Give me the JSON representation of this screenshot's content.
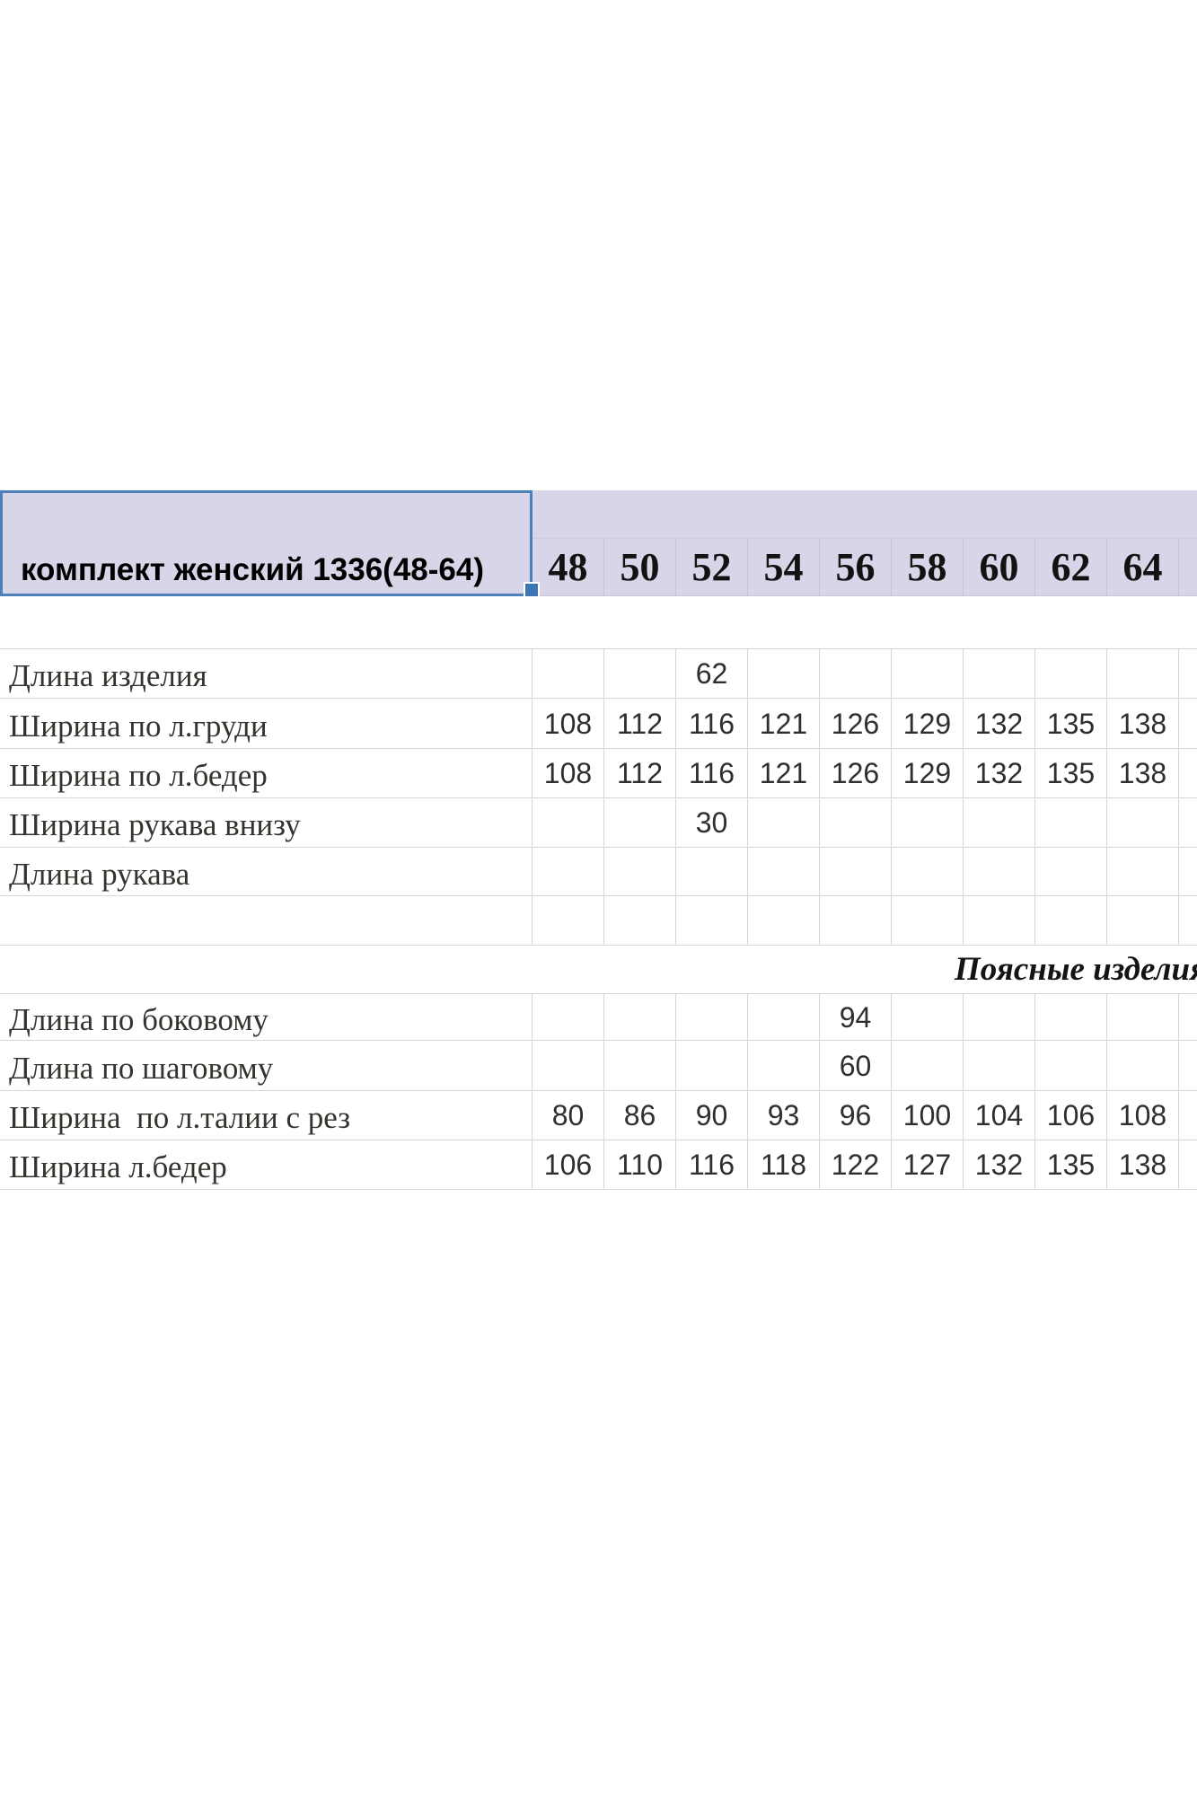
{
  "selected_cell": {
    "text": "комплект женский 1336(48-64)"
  },
  "size_header": {
    "sizes": [
      "48",
      "50",
      "52",
      "54",
      "56",
      "58",
      "60",
      "62",
      "64"
    ]
  },
  "section2_heading": "Поясные изделия",
  "rows_top": [
    {
      "label": "Длина изделия",
      "values": [
        "",
        "",
        "62",
        "",
        "",
        "",
        "",
        "",
        ""
      ]
    },
    {
      "label": "Ширина по л.груди",
      "values": [
        "108",
        "112",
        "116",
        "121",
        "126",
        "129",
        "132",
        "135",
        "138"
      ]
    },
    {
      "label": "Ширина по л.бедер",
      "values": [
        "108",
        "112",
        "116",
        "121",
        "126",
        "129",
        "132",
        "135",
        "138"
      ]
    },
    {
      "label": "Ширина рукава внизу",
      "values": [
        "",
        "",
        "30",
        "",
        "",
        "",
        "",
        "",
        ""
      ]
    },
    {
      "label": "Длина рукава",
      "values": [
        "",
        "",
        "",
        "",
        "",
        "",
        "",
        "",
        ""
      ]
    },
    {
      "label": "",
      "values": [
        "",
        "",
        "",
        "",
        "",
        "",
        "",
        "",
        ""
      ]
    }
  ],
  "rows_bottom": [
    {
      "label": "Длина по боковому",
      "values": [
        "",
        "",
        "",
        "",
        "94",
        "",
        "",
        "",
        ""
      ]
    },
    {
      "label": "Длина по шаговому",
      "values": [
        "",
        "",
        "",
        "",
        "60",
        "",
        "",
        "",
        ""
      ]
    },
    {
      "label": "Ширина  по л.талии с рез",
      "values": [
        "80",
        "86",
        "90",
        "93",
        "96",
        "100",
        "104",
        "106",
        "108"
      ]
    },
    {
      "label": "Ширина л.бедер",
      "values": [
        "106",
        "110",
        "116",
        "118",
        "122",
        "127",
        "132",
        "135",
        "138"
      ]
    }
  ],
  "colors": {
    "header_band_bg": "#d9d5e8",
    "selection_border": "#4d7fb8",
    "fill_handle": "#3e75b5",
    "gridline": "#d7d7da"
  }
}
